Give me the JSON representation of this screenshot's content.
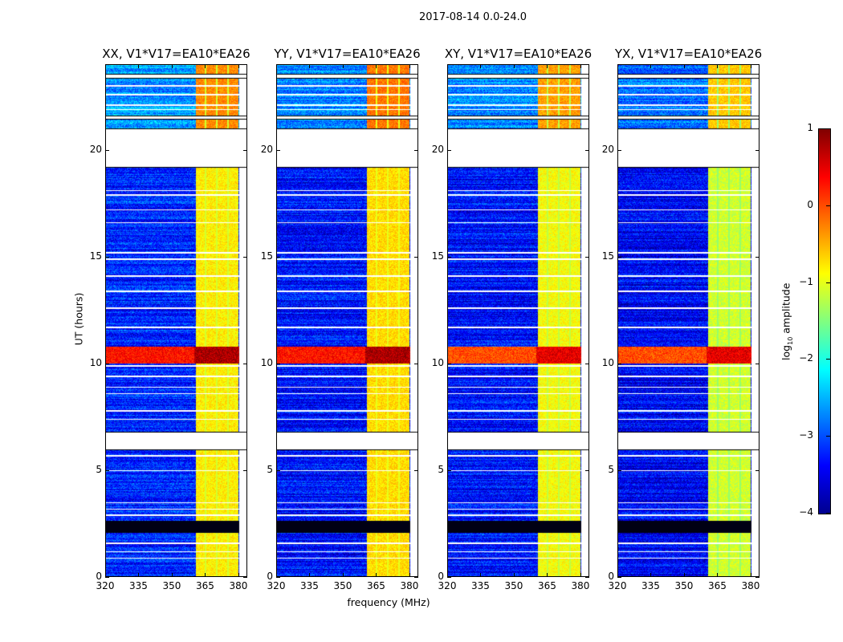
{
  "suptitle": "2017-08-14 0.0-24.0",
  "chart_data": {
    "type": "heatmap",
    "title": "2017-08-14 0.0-24.0",
    "xlabel": "frequency (MHz)",
    "ylabel": "UT (hours)",
    "xlim": [
      320,
      384
    ],
    "ylim": [
      0,
      24
    ],
    "xticks": [
      "320",
      "335",
      "350",
      "365",
      "380"
    ],
    "xtick_values": [
      320,
      335,
      350,
      365,
      380
    ],
    "yticks": [
      "0",
      "5",
      "10",
      "15",
      "20"
    ],
    "ytick_values": [
      0,
      5,
      10,
      15,
      20
    ],
    "panels": [
      {
        "title": "XX, V1*V17=EA10*EA26",
        "background_log_amp": -3.2,
        "rfi_log_amp": -0.8
      },
      {
        "title": "YY, V1*V17=EA10*EA26",
        "background_log_amp": -3.3,
        "rfi_log_amp": -0.7
      },
      {
        "title": "XY, V1*V17=EA10*EA26",
        "background_log_amp": -3.3,
        "rfi_log_amp": -0.9
      },
      {
        "title": "YX, V1*V17=EA10*EA26",
        "background_log_amp": -3.4,
        "rfi_log_amp": -1.1
      }
    ],
    "rfi_band_mhz": [
      360.5,
      380
    ],
    "rfi_gaps_mhz": [
      365,
      370,
      375
    ],
    "flagged_hours": [
      [
        19.2,
        21.0
      ],
      [
        5.97,
        6.8
      ],
      [
        23.35,
        23.55
      ],
      [
        21.45,
        21.6
      ]
    ],
    "thin_flag_hours": [
      23.0,
      22.6,
      22.1,
      21.9,
      18.1,
      17.9,
      17.2,
      16.6,
      15.2,
      14.9,
      14.1,
      13.4,
      12.6,
      11.7,
      9.9,
      9.4,
      8.9,
      8.6,
      7.8,
      7.4,
      5.7,
      5.0,
      3.5,
      3.2,
      2.9,
      1.6,
      1.2,
      0.9
    ],
    "black_band_hours": [
      2.1,
      2.65
    ],
    "bright_band_hours": [
      10.0,
      10.8
    ],
    "bright_band_log_amp": 0.3,
    "colorbar": {
      "label": "log10 amplitude",
      "range": [
        -4,
        1
      ],
      "ticks": [
        "1",
        "0",
        "−1",
        "−2",
        "−3",
        "−4"
      ],
      "tick_values": [
        1,
        0,
        -1,
        -2,
        -3,
        -4
      ],
      "colormap": "jet"
    }
  },
  "cbar_label_main": "log",
  "cbar_label_sub": "10",
  "cbar_label_rest": " amplitude"
}
